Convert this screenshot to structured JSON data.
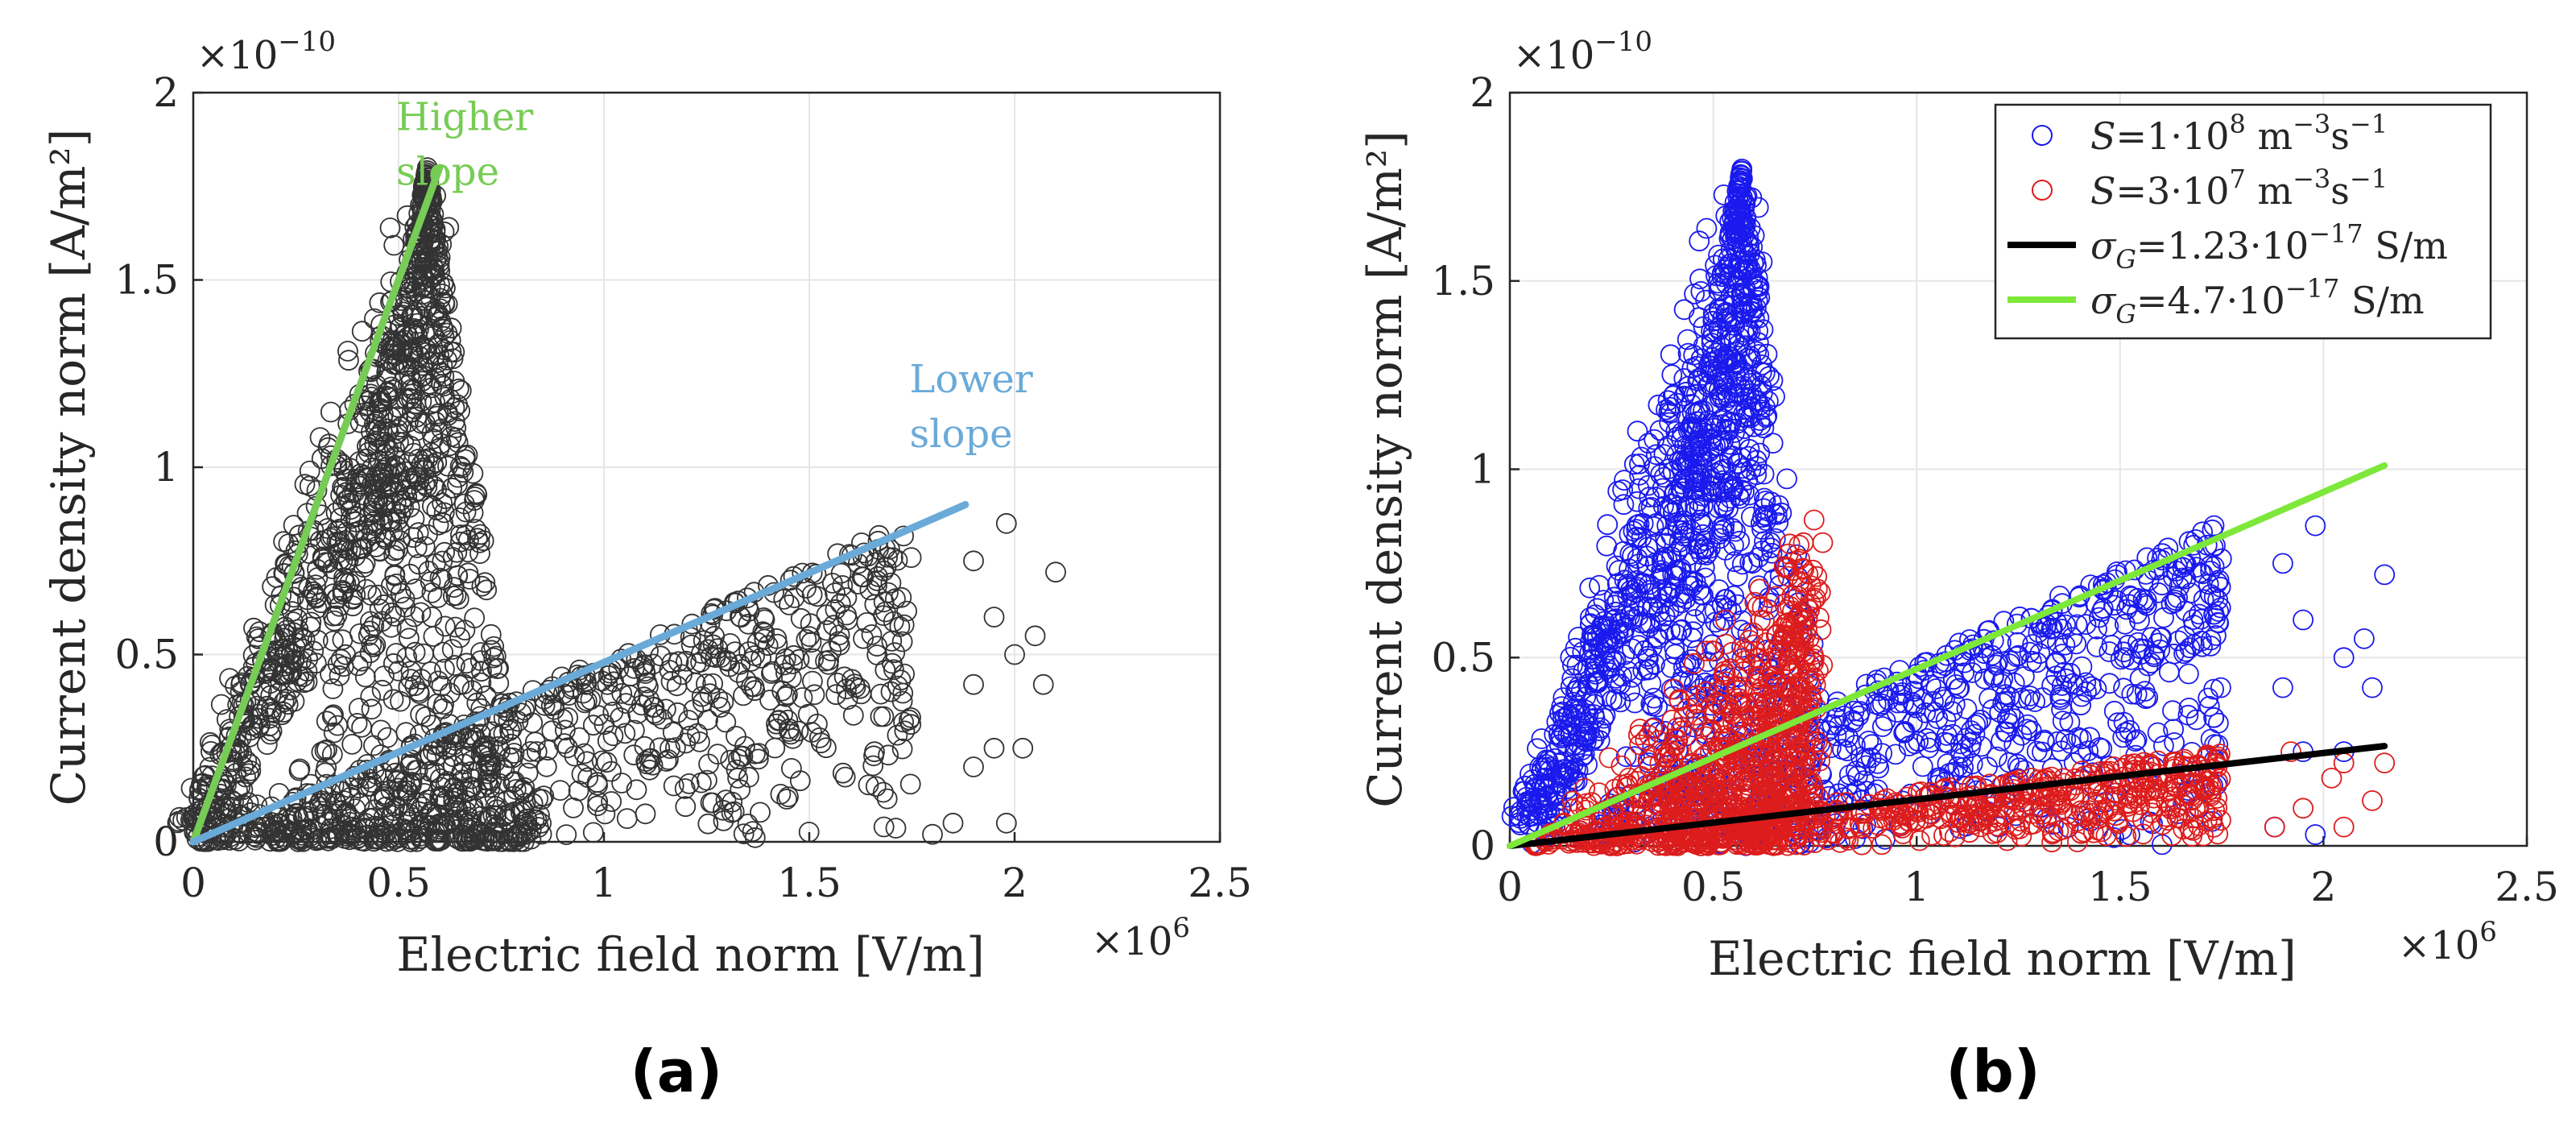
{
  "panels": [
    "(a)",
    "(b)"
  ],
  "chart_data": [
    {
      "type": "scatter",
      "panel_label": "(a)",
      "xlabel": "Electric field norm [V/m]",
      "ylabel": "Current density norm [A/m²]",
      "x_exponent": "×10^6",
      "y_exponent": "×10^-10",
      "xlim": [
        0,
        2.5
      ],
      "ylim": [
        0,
        2
      ],
      "xticks": [
        "0",
        "0.5",
        "1",
        "1.5",
        "2",
        "2.5"
      ],
      "yticks": [
        "0",
        "0.5",
        "1",
        "1.5",
        "2"
      ],
      "grid": true,
      "marker": "open circle",
      "series": [
        {
          "color": "#333333",
          "clusters": [
            {
              "shape": "rising branch",
              "from": [
                0.02,
                0.05
              ],
              "to": [
                0.58,
                1.8
              ]
            },
            {
              "shape": "lobe",
              "peak": [
                0.57,
                1.8
              ],
              "base_x": [
                0.25,
                0.85
              ]
            },
            {
              "shape": "fan",
              "from": [
                0.0,
                0.0
              ],
              "upper_edge_to": [
                1.75,
                0.86
              ],
              "lower_edge_to": [
                1.75,
                0.0
              ]
            },
            {
              "shape": "dense base",
              "x_range": [
                0.0,
                0.85
              ],
              "y_range": [
                0.0,
                0.15
              ]
            }
          ],
          "outliers": [
            [
              1.98,
              0.85
            ],
            [
              2.1,
              0.72
            ],
            [
              1.9,
              0.75
            ],
            [
              1.95,
              0.6
            ],
            [
              2.05,
              0.55
            ],
            [
              2.0,
              0.5
            ],
            [
              2.07,
              0.42
            ],
            [
              1.9,
              0.42
            ],
            [
              1.95,
              0.25
            ],
            [
              2.02,
              0.25
            ],
            [
              1.9,
              0.2
            ],
            [
              1.85,
              0.05
            ],
            [
              1.98,
              0.05
            ],
            [
              1.8,
              0.02
            ]
          ]
        }
      ],
      "lines": [
        {
          "label": "Higher slope",
          "color": "#77cc55",
          "from": [
            0.0,
            0.0
          ],
          "to": [
            0.6,
            1.8
          ]
        },
        {
          "label": "Lower slope",
          "color": "#6aaad8",
          "from": [
            0.0,
            0.0
          ],
          "to": [
            1.88,
            0.9
          ]
        }
      ],
      "annotations": [
        {
          "text": "Higher slope",
          "lines": [
            "Higher",
            "slope"
          ],
          "color": "#77cc55",
          "at": [
            0.7,
            1.9
          ]
        },
        {
          "text": "Lower slope",
          "lines": [
            "Lower",
            "slope"
          ],
          "color": "#6aaad8",
          "at": [
            1.95,
            1.2
          ]
        }
      ]
    },
    {
      "type": "scatter",
      "panel_label": "(b)",
      "xlabel": "Electric field norm [V/m]",
      "ylabel": "Current density norm [A/m²]",
      "x_exponent": "×10^6",
      "y_exponent": "×10^-10",
      "xlim": [
        0,
        2.5
      ],
      "ylim": [
        0,
        2
      ],
      "xticks": [
        "0",
        "0.5",
        "1",
        "1.5",
        "2",
        "2.5"
      ],
      "yticks": [
        "0",
        "0.5",
        "1",
        "1.5",
        "2"
      ],
      "grid": true,
      "legend_position": "top-right",
      "series": [
        {
          "name": "S=1·10^8 m^-3 s^-1",
          "color": "#1a1aee",
          "marker": "open circle",
          "clusters": [
            {
              "shape": "rising branch",
              "from": [
                0.05,
                0.05
              ],
              "to": [
                0.58,
                1.8
              ]
            },
            {
              "shape": "lobe",
              "peak": [
                0.57,
                1.8
              ],
              "base_x": [
                0.25,
                0.85
              ]
            },
            {
              "shape": "fan",
              "from": [
                0.0,
                0.0
              ],
              "upper_edge_to": [
                1.75,
                0.86
              ],
              "lower_edge_to": [
                1.75,
                0.0
              ]
            }
          ],
          "outliers": [
            [
              1.98,
              0.85
            ],
            [
              2.15,
              0.72
            ],
            [
              1.9,
              0.75
            ],
            [
              1.95,
              0.6
            ],
            [
              2.1,
              0.55
            ],
            [
              2.05,
              0.5
            ],
            [
              2.12,
              0.42
            ],
            [
              1.9,
              0.42
            ],
            [
              1.95,
              0.25
            ],
            [
              2.05,
              0.25
            ],
            [
              1.88,
              0.05
            ],
            [
              1.98,
              0.03
            ]
          ]
        },
        {
          "name": "S=3·10^7 m^-3 s^-1",
          "color": "#dd1c1c",
          "marker": "open circle",
          "clusters": [
            {
              "shape": "wedge",
              "from": [
                0.0,
                0.0
              ],
              "peak": [
                0.75,
                0.87
              ],
              "base_x": [
                0.0,
                0.95
              ]
            },
            {
              "shape": "fan",
              "from": [
                0.0,
                0.0
              ],
              "upper_edge_to": [
                1.75,
                0.25
              ],
              "lower_edge_to": [
                1.75,
                0.0
              ]
            }
          ],
          "outliers": [
            [
              1.92,
              0.25
            ],
            [
              2.05,
              0.22
            ],
            [
              2.15,
              0.22
            ],
            [
              2.02,
              0.18
            ],
            [
              2.12,
              0.12
            ],
            [
              1.95,
              0.1
            ],
            [
              1.88,
              0.05
            ],
            [
              2.05,
              0.05
            ]
          ]
        },
        {
          "name": "σG=1.23·10^-17 S/m",
          "color": "#000000",
          "marker": "line",
          "from": [
            0.0,
            0.0
          ],
          "to": [
            2.15,
            0.265
          ]
        },
        {
          "name": "σG=4.7·10^-17 S/m",
          "color": "#7de83a",
          "marker": "line",
          "from": [
            0.0,
            0.0
          ],
          "to": [
            2.15,
            1.01
          ]
        }
      ],
      "legend": [
        {
          "base": "S",
          "eq": "=1·10",
          "sup1": "8",
          "mid": " m",
          "sup2": "−3",
          "mid2": "s",
          "sup3": "−1",
          "color": "#1a1aee",
          "marker": "circle"
        },
        {
          "base": "S",
          "eq": "=3·10",
          "sup1": "7",
          "mid": " m",
          "sup2": "−3",
          "mid2": "s",
          "sup3": "−1",
          "color": "#dd1c1c",
          "marker": "circle"
        },
        {
          "base": "σ",
          "sub": "G",
          "eq": "=1.23·10",
          "sup1": "−17",
          "mid": " S/m",
          "color": "#000000",
          "marker": "line"
        },
        {
          "base": "σ",
          "sub": "G",
          "eq": "=4.7·10",
          "sup1": "−17",
          "mid": " S/m",
          "color": "#7de83a",
          "marker": "line"
        }
      ]
    }
  ]
}
